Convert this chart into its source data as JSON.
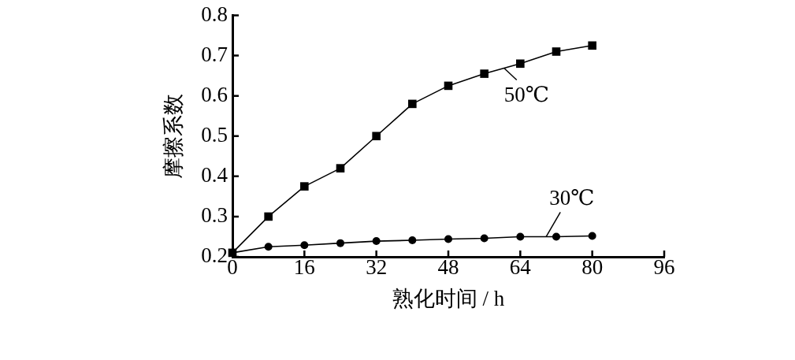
{
  "chart_data": {
    "type": "line",
    "xlabel": "熟化时间 / h",
    "ylabel": "摩擦系数",
    "x": [
      0,
      8,
      16,
      24,
      32,
      40,
      48,
      56,
      64,
      72,
      80
    ],
    "series": [
      {
        "name": "50℃",
        "color": "#000000",
        "marker": "square",
        "values": [
          0.21,
          0.3,
          0.375,
          0.42,
          0.5,
          0.58,
          0.625,
          0.655,
          0.68,
          0.71,
          0.725
        ]
      },
      {
        "name": "30℃",
        "color": "#000000",
        "marker": "circle",
        "values": [
          0.21,
          0.225,
          0.229,
          0.234,
          0.239,
          0.241,
          0.244,
          0.246,
          0.25,
          0.25,
          0.252
        ]
      }
    ],
    "xlim": [
      0,
      96
    ],
    "xticks": [
      0,
      16,
      32,
      48,
      64,
      80,
      96
    ],
    "ylim": [
      0.2,
      0.8
    ],
    "yticks": [
      0.2,
      0.3,
      0.4,
      0.5,
      0.6,
      0.7,
      0.8
    ],
    "line_style": "solid"
  }
}
